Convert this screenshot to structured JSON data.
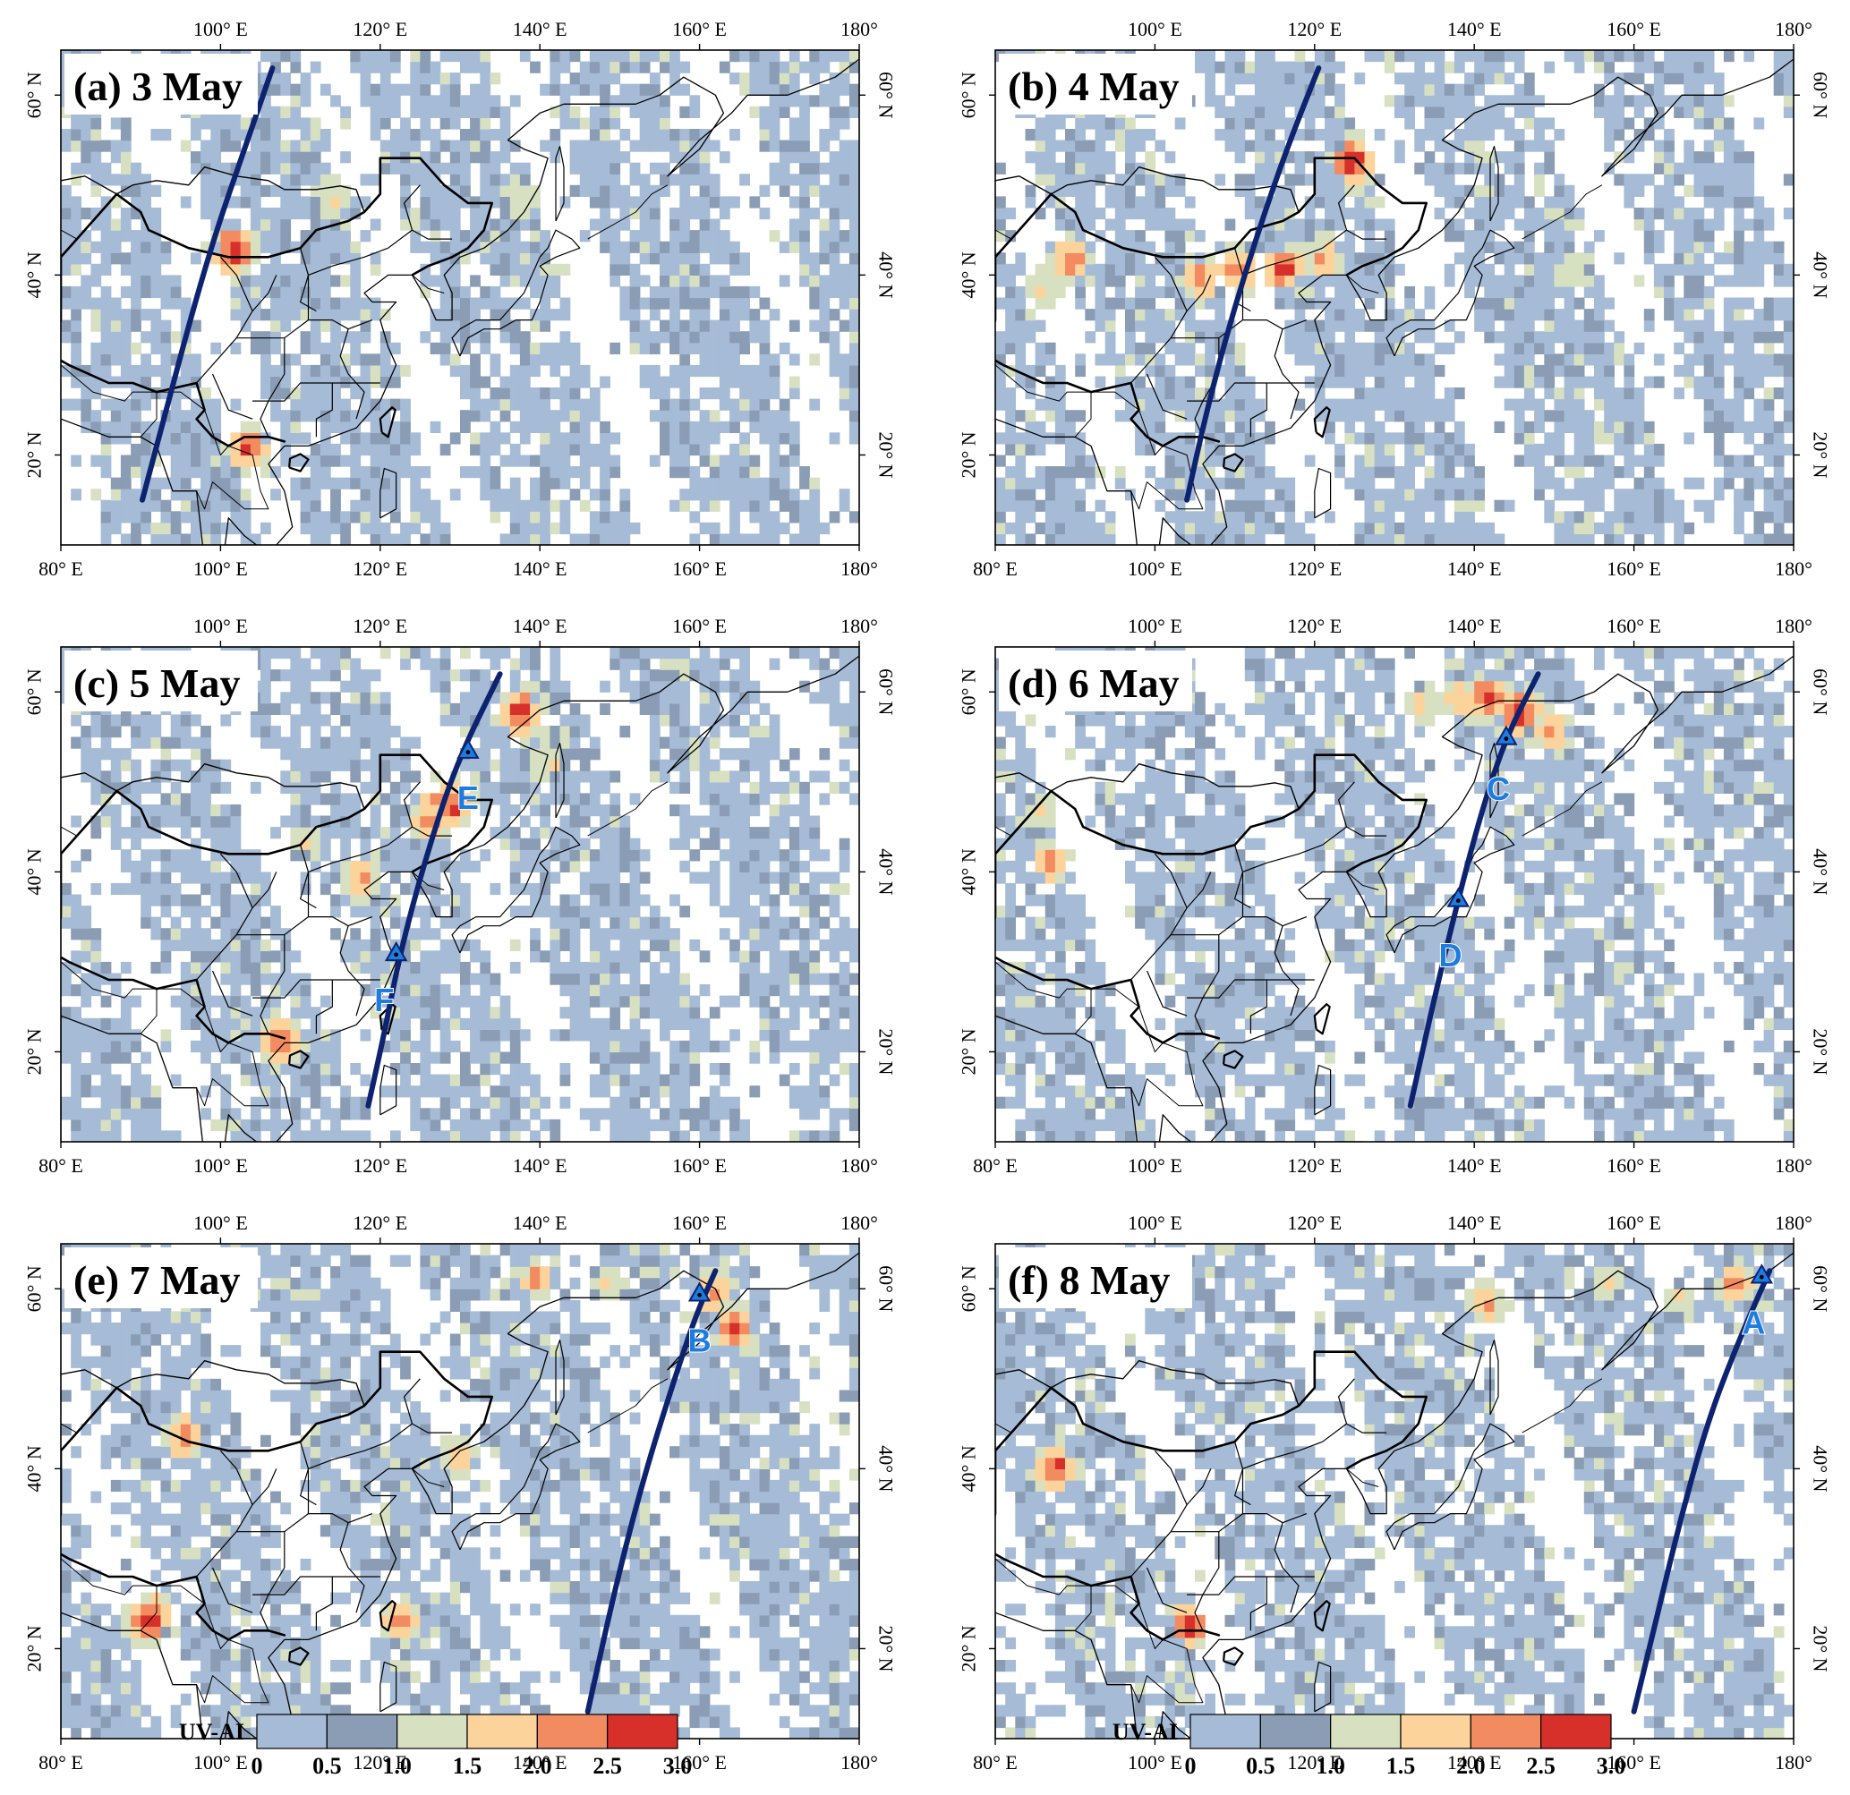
{
  "figure": {
    "colorbar": {
      "title": "UV-AI",
      "ticks": [
        "0",
        "0.5",
        "1.0",
        "1.5",
        "2.0",
        "2.5",
        "3.0"
      ],
      "colors": [
        "#a6bbd6",
        "#8a9db5",
        "#d8e0c2",
        "#fdd39c",
        "#f28c60",
        "#d7302b"
      ]
    },
    "axes": {
      "lon_range": [
        80,
        180
      ],
      "lat_range": [
        10,
        65
      ],
      "lon_ticks": [
        {
          "value": 80,
          "label": "80° E"
        },
        {
          "value": 100,
          "label": "100° E"
        },
        {
          "value": 120,
          "label": "120° E"
        },
        {
          "value": 140,
          "label": "140° E"
        },
        {
          "value": 160,
          "label": "160° E"
        },
        {
          "value": 180,
          "label": "180°"
        }
      ],
      "lat_ticks": [
        {
          "value": 20,
          "label": "20° N"
        },
        {
          "value": 40,
          "label": "40° N"
        },
        {
          "value": 60,
          "label": "60° N"
        }
      ]
    },
    "colors": {
      "track": "#0d2370",
      "marker": "#1e7be0",
      "land_border": "#000000"
    },
    "panels": [
      {
        "label": "(a) 3 May",
        "track": [
          [
            90.2,
            15
          ],
          [
            93.5,
            26
          ],
          [
            96.5,
            36
          ],
          [
            99.5,
            45
          ],
          [
            103,
            54
          ],
          [
            106.5,
            63
          ]
        ],
        "points": [],
        "hotspots": [
          [
            101,
            42,
            3.0
          ],
          [
            103,
            20,
            2.6
          ],
          [
            113.5,
            48,
            1.6
          ],
          [
            137,
            48,
            1.4
          ]
        ]
      },
      {
        "label": "(b) 4 May",
        "track": [
          [
            104,
            15
          ],
          [
            106.5,
            25
          ],
          [
            109.5,
            35
          ],
          [
            113,
            45
          ],
          [
            116.5,
            54
          ],
          [
            120.5,
            63
          ]
        ],
        "points": [],
        "hotspots": [
          [
            124,
            52,
            3.0
          ],
          [
            115.5,
            40,
            2.8
          ],
          [
            109.5,
            40,
            2.4
          ],
          [
            105,
            39,
            2.3
          ],
          [
            89,
            41,
            2.3
          ],
          [
            120.5,
            41,
            2.0
          ],
          [
            85.5,
            38,
            1.6
          ],
          [
            152,
            40,
            1.4
          ]
        ]
      },
      {
        "label": "(c) 5 May",
        "track": [
          [
            118.5,
            14
          ],
          [
            120.5,
            22
          ],
          [
            122.5,
            31
          ],
          [
            125.5,
            41
          ],
          [
            129.5,
            52
          ],
          [
            135,
            62
          ]
        ],
        "points": [
          {
            "name": "E",
            "lon": 131,
            "lat": 53.5,
            "label_lon": 131,
            "label_lat": 47
          },
          {
            "name": "F",
            "lon": 122,
            "lat": 31,
            "label_lon": 120.5,
            "label_lat": 24.5
          }
        ],
        "hotspots": [
          [
            137,
            57,
            3.0
          ],
          [
            128,
            47,
            2.9
          ],
          [
            125.5,
            45.5,
            2.2
          ],
          [
            117,
            39,
            2.2
          ],
          [
            107,
            20.5,
            2.5
          ],
          [
            140.5,
            52,
            1.6
          ],
          [
            110,
            43,
            1.4
          ]
        ]
      },
      {
        "label": "(d) 6 May",
        "track": [
          [
            132,
            14
          ],
          [
            135,
            26
          ],
          [
            138,
            37
          ],
          [
            141,
            47
          ],
          [
            144,
            55
          ],
          [
            148,
            62
          ]
        ],
        "points": [
          {
            "name": "C",
            "lon": 144,
            "lat": 55,
            "label_lon": 143,
            "label_lat": 48
          },
          {
            "name": "D",
            "lon": 138,
            "lat": 37,
            "label_lon": 137,
            "label_lat": 29.5
          }
        ],
        "hotspots": [
          [
            145,
            57,
            3.0
          ],
          [
            141,
            59,
            2.7
          ],
          [
            137.5,
            58.5,
            2.0
          ],
          [
            149,
            55,
            2.2
          ],
          [
            86.5,
            40.5,
            2.3
          ],
          [
            133,
            58,
            1.5
          ],
          [
            85,
            46,
            1.4
          ]
        ]
      },
      {
        "label": "(e) 7 May",
        "track": [
          [
            146,
            13
          ],
          [
            149.5,
            27
          ],
          [
            153,
            39
          ],
          [
            156.5,
            49
          ],
          [
            159.5,
            57
          ],
          [
            162,
            62
          ]
        ],
        "points": [
          {
            "name": "B",
            "lon": 160,
            "lat": 59.5,
            "label_lon": 160,
            "label_lat": 53
          }
        ],
        "hotspots": [
          [
            161,
            59,
            2.2
          ],
          [
            164,
            55,
            2.6
          ],
          [
            139,
            60.5,
            2.1
          ],
          [
            129,
            40.5,
            2.0
          ],
          [
            90.5,
            22.5,
            2.9
          ],
          [
            122,
            22.5,
            2.4
          ],
          [
            95,
            43,
            2.3
          ],
          [
            148,
            60,
            1.6
          ]
        ]
      },
      {
        "label": "(f) 8 May",
        "track": [
          [
            160,
            13
          ],
          [
            163,
            24
          ],
          [
            166,
            35
          ],
          [
            169.5,
            46
          ],
          [
            173.5,
            55
          ],
          [
            177,
            62
          ]
        ],
        "points": [
          {
            "name": "A",
            "lon": 176,
            "lat": 61.5,
            "label_lon": 175,
            "label_lat": 55
          }
        ],
        "hotspots": [
          [
            172,
            60,
            2.2
          ],
          [
            87,
            39.5,
            2.8
          ],
          [
            141,
            57.5,
            2.1
          ],
          [
            103.5,
            22,
            2.7
          ],
          [
            165,
            58,
            1.5
          ],
          [
            156,
            60,
            1.4
          ]
        ]
      }
    ]
  }
}
